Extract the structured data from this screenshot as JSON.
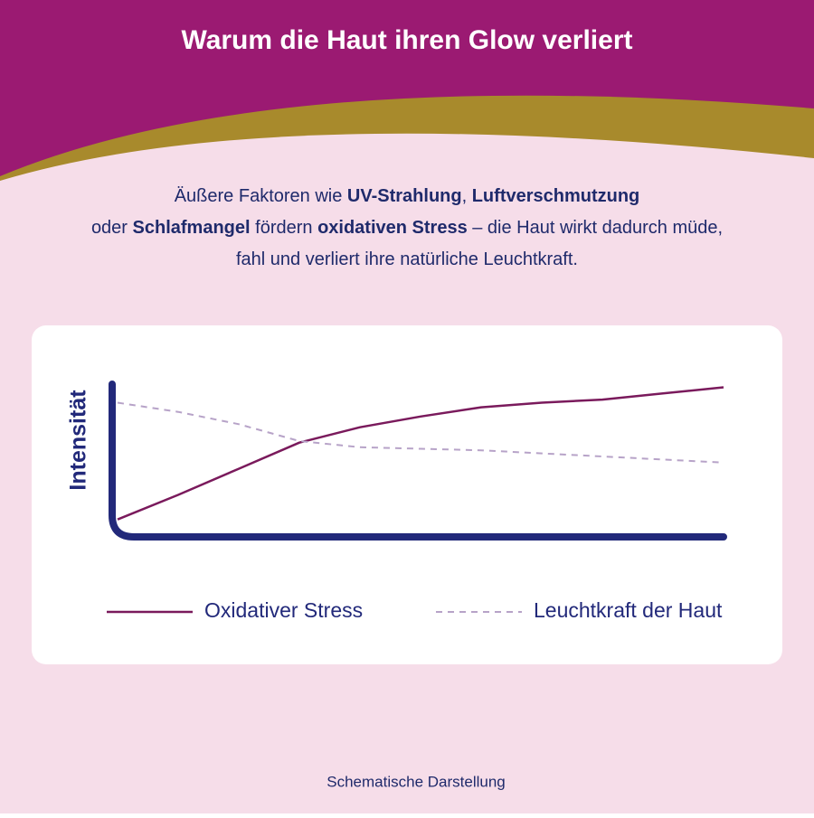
{
  "header": {
    "title": "Warum die Haut ihren Glow verliert"
  },
  "intro": {
    "lines": [
      [
        {
          "text": "Äußere Faktoren wie ",
          "bold": false
        },
        {
          "text": "UV-Strahlung",
          "bold": true
        },
        {
          "text": ", ",
          "bold": false
        },
        {
          "text": "Luftverschmutzung",
          "bold": true
        }
      ],
      [
        {
          "text": "oder ",
          "bold": false
        },
        {
          "text": "Schlafmangel",
          "bold": true
        },
        {
          "text": " fördern ",
          "bold": false
        },
        {
          "text": "oxidativen Stress",
          "bold": true
        },
        {
          "text": " – die Haut wirkt dadurch müde,",
          "bold": false
        }
      ],
      [
        {
          "text": "fahl und verliert ihre natürliche Leuchtkraft.",
          "bold": false
        }
      ]
    ]
  },
  "chart_data": {
    "type": "line",
    "y_label": "Intensität",
    "x": [
      0,
      10,
      20,
      30,
      40,
      50,
      60,
      70,
      80,
      90,
      100
    ],
    "xlim": [
      0,
      100
    ],
    "ylim": [
      0,
      100
    ],
    "series": [
      {
        "name": "Oxidativer Stress",
        "color": "#7a1a5c",
        "dashed": false,
        "values": [
          9,
          25,
          42,
          59,
          69,
          76,
          82,
          85,
          87,
          91,
          95
        ]
      },
      {
        "name": "Leuchtkraft der Haut",
        "color": "#b7a3c8",
        "dashed": true,
        "values": [
          85,
          79,
          71,
          60,
          56,
          55,
          54,
          52,
          50,
          48,
          46
        ]
      }
    ]
  },
  "footnote": "Schematische Darstellung"
}
